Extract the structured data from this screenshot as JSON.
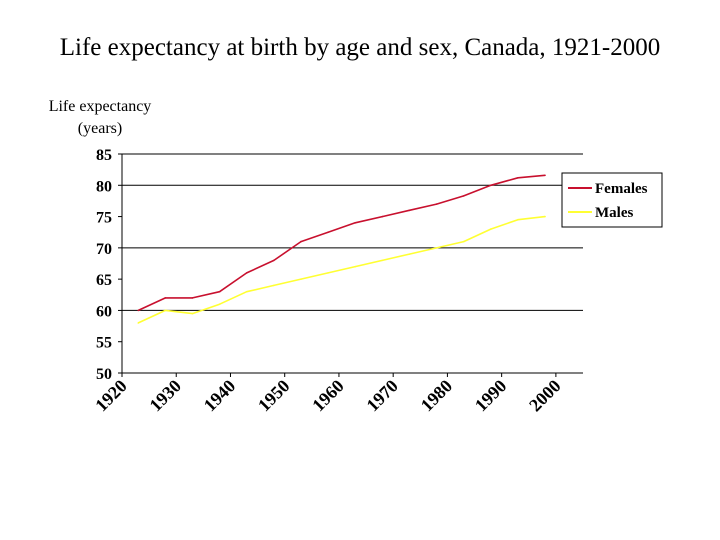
{
  "slide": {
    "title": "Life expectancy at birth by age and sex, Canada, 1921-2000"
  },
  "chart_data": {
    "type": "line",
    "title": "Life expectancy at birth by age and sex, Canada, 1921-2000",
    "ylabel_lines": [
      "Life expectancy",
      "(years)"
    ],
    "xlabel": "",
    "xlim": [
      1920,
      2005
    ],
    "ylim": [
      50,
      85
    ],
    "y_ticks": [
      50,
      55,
      60,
      65,
      70,
      75,
      80,
      85
    ],
    "x_ticks": [
      "1920",
      "1930",
      "1940",
      "1950",
      "1960",
      "1970",
      "1980",
      "1990",
      "2000"
    ],
    "gridlines_y": [
      60,
      70,
      80,
      85
    ],
    "legend_position": "right",
    "x": [
      1923,
      1928,
      1933,
      1938,
      1943,
      1948,
      1953,
      1958,
      1963,
      1968,
      1973,
      1978,
      1983,
      1988,
      1993,
      1998
    ],
    "series": [
      {
        "name": "Females",
        "color": "#c8102e",
        "values": [
          60.0,
          62.0,
          62.0,
          63.0,
          66.0,
          68.0,
          71.0,
          72.5,
          74.0,
          75.0,
          76.0,
          77.0,
          78.3,
          80.0,
          81.2,
          81.6
        ]
      },
      {
        "name": "Males",
        "color": "#ffff33",
        "values": [
          58.0,
          60.0,
          59.5,
          61.0,
          63.0,
          64.0,
          65.0,
          66.0,
          67.0,
          68.0,
          69.0,
          70.0,
          71.0,
          73.0,
          74.5,
          75.0
        ]
      }
    ]
  }
}
